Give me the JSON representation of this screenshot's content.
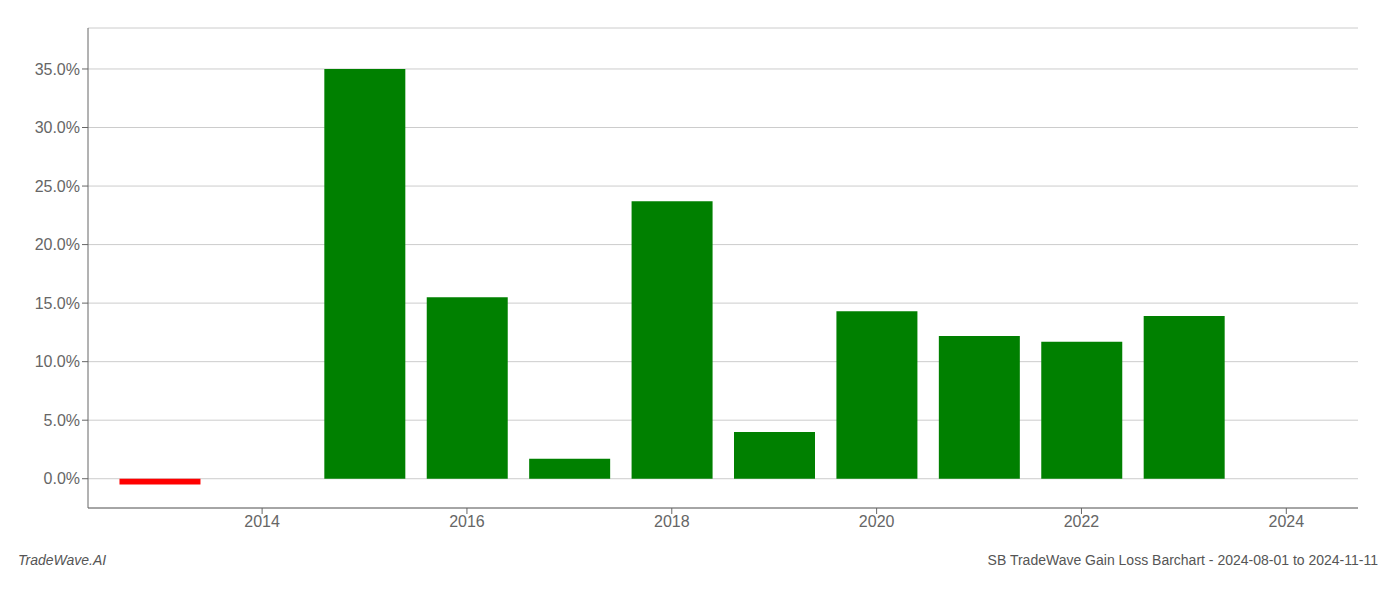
{
  "chart_data": {
    "type": "bar",
    "title": "SB TradeWave Gain Loss Barchart - 2024-08-01 to 2024-11-11",
    "subtitle": "TradeWave.AI",
    "x": [
      2013,
      2015,
      2016,
      2017,
      2018,
      2019,
      2020,
      2021,
      2022,
      2023
    ],
    "values": [
      -0.005,
      0.35,
      0.155,
      0.017,
      0.237,
      0.04,
      0.143,
      0.122,
      0.117,
      0.139
    ],
    "colors": [
      "#ff0000",
      "#008000",
      "#008000",
      "#008000",
      "#008000",
      "#008000",
      "#008000",
      "#008000",
      "#008000",
      "#008000"
    ],
    "xlim": [
      2012.3,
      2024.7
    ],
    "ylim": [
      -0.025,
      0.385
    ],
    "xticks": [
      2014,
      2016,
      2018,
      2020,
      2022,
      2024
    ],
    "yticks": [
      {
        "value": 0.0,
        "label": "0.0%"
      },
      {
        "value": 0.05,
        "label": "5.0%"
      },
      {
        "value": 0.1,
        "label": "10.0%"
      },
      {
        "value": 0.15,
        "label": "15.0%"
      },
      {
        "value": 0.2,
        "label": "20.0%"
      },
      {
        "value": 0.25,
        "label": "25.0%"
      },
      {
        "value": 0.3,
        "label": "30.0%"
      },
      {
        "value": 0.35,
        "label": "35.0%"
      }
    ],
    "grid": true
  }
}
